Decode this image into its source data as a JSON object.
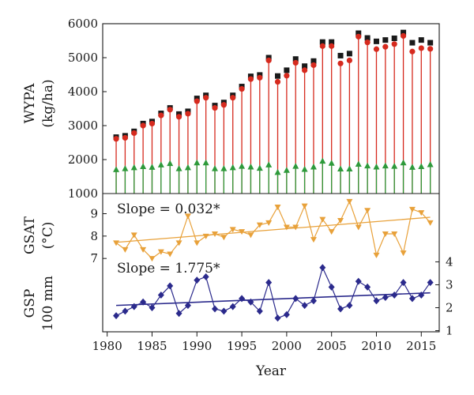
{
  "chart_data": [
    {
      "type": "line",
      "panel": "top",
      "ylabel_lines": [
        "WYPA",
        "(kg/ha)"
      ],
      "ylim": [
        1000,
        6000
      ],
      "yticks": [
        "1000",
        "2000",
        "3000",
        "4000",
        "5000",
        "6000"
      ],
      "x": [
        1981,
        1982,
        1983,
        1984,
        1985,
        1986,
        1987,
        1988,
        1989,
        1990,
        1991,
        1992,
        1993,
        1994,
        1995,
        1996,
        1997,
        1998,
        1999,
        2000,
        2001,
        2002,
        2003,
        2004,
        2005,
        2006,
        2007,
        2008,
        2009,
        2010,
        2011,
        2012,
        2013,
        2014,
        2015,
        2016
      ],
      "series": [
        {
          "marker": "square",
          "color": "#1a1a1a",
          "values": [
            2660,
            2700,
            2830,
            3060,
            3120,
            3360,
            3520,
            3340,
            3420,
            3800,
            3890,
            3590,
            3680,
            3890,
            4150,
            4450,
            4490,
            5000,
            4460,
            4630,
            4960,
            4750,
            4900,
            5460,
            5460,
            5060,
            5120,
            5720,
            5580,
            5480,
            5520,
            5570,
            5740,
            5440,
            5520,
            5440
          ]
        },
        {
          "marker": "circle",
          "color": "#d62a1e",
          "values": [
            2610,
            2640,
            2780,
            3000,
            3060,
            3300,
            3470,
            3260,
            3350,
            3720,
            3820,
            3520,
            3610,
            3820,
            4080,
            4370,
            4410,
            4920,
            4290,
            4470,
            4850,
            4630,
            4780,
            5340,
            5340,
            4830,
            4920,
            5620,
            5450,
            5250,
            5320,
            5400,
            5640,
            5180,
            5280,
            5260
          ]
        },
        {
          "marker": "triangle",
          "color": "#2e9a3b",
          "values": [
            1700,
            1730,
            1760,
            1790,
            1770,
            1840,
            1880,
            1730,
            1760,
            1900,
            1900,
            1730,
            1730,
            1760,
            1800,
            1780,
            1740,
            1840,
            1620,
            1680,
            1800,
            1710,
            1780,
            1950,
            1890,
            1720,
            1720,
            1860,
            1810,
            1780,
            1810,
            1800,
            1900,
            1770,
            1790,
            1850
          ]
        }
      ]
    },
    {
      "type": "line",
      "panel": "middle",
      "ylabel_lines": [
        "GSAT",
        "(°C)"
      ],
      "ylim": [
        6.9,
        9.9
      ],
      "yticks": [
        "7",
        "8",
        "9"
      ],
      "annotation": "Slope = 0.032*",
      "color": "#e8a13a",
      "marker": "triangle-down",
      "x": [
        1981,
        1982,
        1983,
        1984,
        1985,
        1986,
        1987,
        1988,
        1989,
        1990,
        1991,
        1992,
        1993,
        1994,
        1995,
        1996,
        1997,
        1998,
        1999,
        2000,
        2001,
        2002,
        2003,
        2004,
        2005,
        2006,
        2007,
        2008,
        2009,
        2010,
        2011,
        2012,
        2013,
        2014,
        2015,
        2016
      ],
      "values": [
        7.7,
        7.4,
        8.05,
        7.4,
        7.0,
        7.3,
        7.2,
        7.7,
        8.9,
        7.7,
        8.0,
        8.1,
        7.95,
        8.3,
        8.2,
        8.05,
        8.5,
        8.6,
        9.3,
        8.4,
        8.4,
        9.35,
        7.85,
        8.75,
        8.2,
        8.7,
        9.55,
        8.4,
        9.15,
        7.15,
        8.1,
        8.1,
        7.25,
        9.2,
        9.05,
        8.6
      ],
      "trend": [
        7.72,
        8.84
      ]
    },
    {
      "type": "line",
      "panel": "bottom",
      "ylabel_lines": [
        "GSP",
        "100 mm"
      ],
      "ylim": [
        0.95,
        4.05
      ],
      "yticks": [
        "1",
        "2",
        "3",
        "4"
      ],
      "annotation": "Slope = 1.775*",
      "color": "#2b2a8c",
      "marker": "diamond",
      "x": [
        1981,
        1982,
        1983,
        1984,
        1985,
        1986,
        1987,
        1988,
        1989,
        1990,
        1991,
        1992,
        1993,
        1994,
        1995,
        1996,
        1997,
        1998,
        1999,
        2000,
        2001,
        2002,
        2003,
        2004,
        2005,
        2006,
        2007,
        2008,
        2009,
        2010,
        2011,
        2012,
        2013,
        2014,
        2015,
        2016
      ],
      "values": [
        1.65,
        1.85,
        2.05,
        2.25,
        2.0,
        2.55,
        2.95,
        1.75,
        2.1,
        3.2,
        3.35,
        1.95,
        1.85,
        2.05,
        2.4,
        2.25,
        1.85,
        3.1,
        1.55,
        1.7,
        2.4,
        2.1,
        2.3,
        3.75,
        2.9,
        1.95,
        2.1,
        3.15,
        2.9,
        2.3,
        2.45,
        2.55,
        3.1,
        2.4,
        2.55,
        3.1
      ],
      "trend": [
        2.1,
        2.65
      ]
    }
  ],
  "xaxis": {
    "label": "Year",
    "ticks": [
      "1980",
      "1985",
      "1990",
      "1995",
      "2000",
      "2005",
      "2010",
      "2015"
    ],
    "xlim": [
      1979.5,
      2017
    ]
  }
}
